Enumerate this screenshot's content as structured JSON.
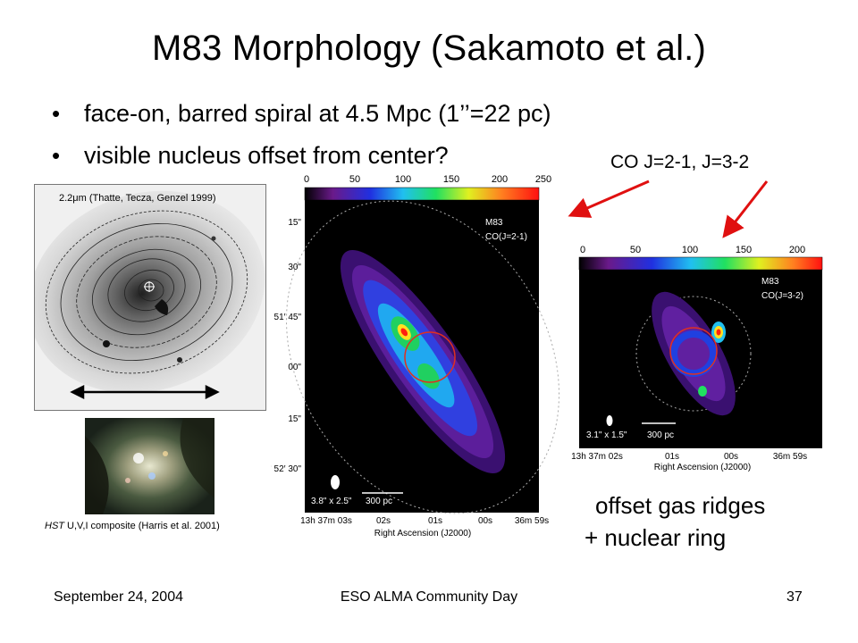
{
  "slide": {
    "title": "M83 Morphology (Sakamoto et al.)",
    "bullets": [
      "face-on, barred spiral at 4.5 Mpc (1’’=22 pc)",
      "visible nucleus offset from center?"
    ],
    "co_label": "CO J=2-1, J=3-2",
    "offset_line1": "offset gas ridges",
    "offset_line2": "+ nuclear ring"
  },
  "figures": {
    "ir_caption": "2.2μm (Thatte, Tecza, Genzel 1999)",
    "hst_caption_italic": "HST",
    "hst_caption_rest": " U,V,I composite (Harris et al. 2001)",
    "co21": {
      "colorbar_ticks": [
        "0",
        "50",
        "100",
        "150",
        "200",
        "250"
      ],
      "name": "M83",
      "line": "CO(J=2-1)",
      "dec_ticks": [
        "15\"",
        "30\"",
        "51′ 45\"",
        "00\"",
        "15\"",
        "-29° 52′ 30\""
      ],
      "ra_ticks": [
        "13h 37m 03s",
        "02s",
        "01s",
        "00s",
        "36m 59s"
      ],
      "ra_label": "Right Ascension (J2000)",
      "beam": "3.8\" x 2.5\"",
      "scalebar": "300 pc"
    },
    "co32": {
      "colorbar_ticks": [
        "0",
        "50",
        "100",
        "150",
        "200"
      ],
      "name": "M83",
      "line": "CO(J=3-2)",
      "ra_ticks": [
        "13h 37m 02s",
        "01s",
        "00s",
        "36m 59s"
      ],
      "ra_label": "Right Ascension (J2000)",
      "beam": "3.1\" x 1.5\"",
      "scalebar": "300 pc"
    }
  },
  "footer": {
    "date": "September 24, 2004",
    "event": "ESO ALMA Community Day",
    "page": "37"
  },
  "colors": {
    "arrow": "#e01010",
    "map_background": "#000000"
  }
}
